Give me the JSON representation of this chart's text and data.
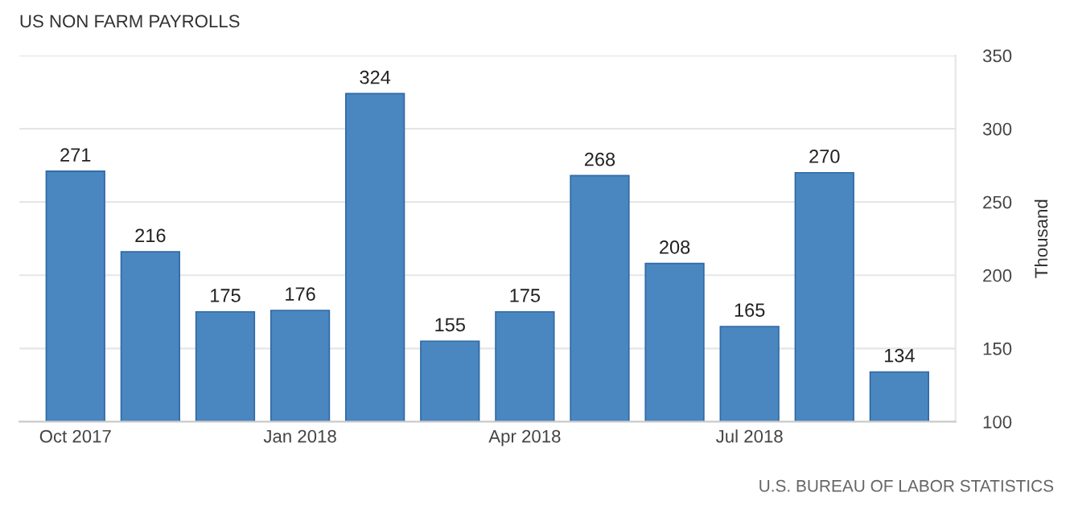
{
  "chart_data": {
    "type": "bar",
    "title": "US NON FARM PAYROLLS",
    "ylabel": "Thousand",
    "categories": [
      "Oct 2017",
      null,
      null,
      "Jan 2018",
      null,
      null,
      "Apr 2018",
      null,
      null,
      "Jul 2018",
      null,
      null
    ],
    "values": [
      271,
      216,
      175,
      176,
      324,
      155,
      175,
      268,
      208,
      165,
      270,
      134
    ],
    "color": "#4a86c0",
    "data_labels": true,
    "ylim": [
      100,
      350
    ],
    "yticks": [
      100,
      150,
      200,
      250,
      300,
      350
    ],
    "grid": "y",
    "annotations": [
      "U.S. BUREAU OF LABOR STATISTICS"
    ]
  }
}
